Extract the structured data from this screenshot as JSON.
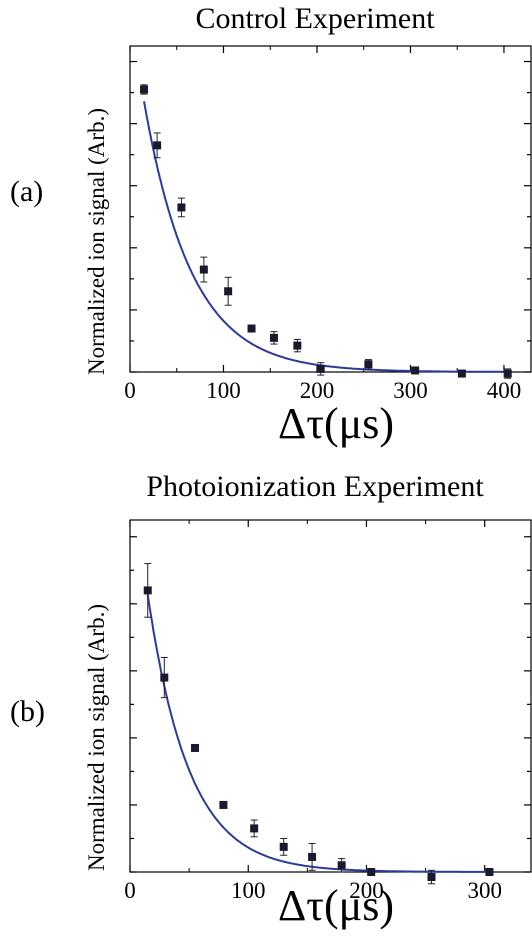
{
  "chart_data": [
    {
      "type": "scatter",
      "panel_label": "(a)",
      "title": "Control Experiment",
      "xlabel": "Δτ(μs)",
      "ylabel": "Normalized ion signal (Arb.)",
      "xlim": [
        0,
        430
      ],
      "ylim": [
        0,
        1.05
      ],
      "xticks": [
        "0",
        "100",
        "200",
        "300",
        "400"
      ],
      "xtick_values": [
        0,
        100,
        200,
        300,
        400
      ],
      "y_tick_labels_shown": false,
      "series": [
        {
          "marker": "square",
          "points": [
            {
              "x": 15,
              "y": 0.91,
              "err": 0.015
            },
            {
              "x": 29,
              "y": 0.73,
              "err": 0.04
            },
            {
              "x": 55,
              "y": 0.53,
              "err": 0.03
            },
            {
              "x": 79,
              "y": 0.33,
              "err": 0.04
            },
            {
              "x": 105,
              "y": 0.26,
              "err": 0.045
            },
            {
              "x": 130,
              "y": 0.14,
              "err": 0.0
            },
            {
              "x": 154,
              "y": 0.11,
              "err": 0.02
            },
            {
              "x": 179,
              "y": 0.085,
              "err": 0.02
            },
            {
              "x": 204,
              "y": 0.01,
              "err": 0.02
            },
            {
              "x": 255,
              "y": 0.025,
              "err": 0.015
            },
            {
              "x": 305,
              "y": 0.005,
              "err": 0.0
            },
            {
              "x": 355,
              "y": -0.005,
              "err": 0.01
            },
            {
              "x": 404,
              "y": -0.005,
              "err": 0.015
            }
          ]
        },
        {
          "type": "line",
          "fit": {
            "amplitude": 1.17,
            "tau": 51,
            "offset": 0
          },
          "color": "#2e3a9a"
        }
      ]
    },
    {
      "type": "scatter",
      "panel_label": "(b)",
      "title": "Photoionization Experiment",
      "xlabel": "Δτ(μs)",
      "ylabel": "Normalized ion signal (Arb.)",
      "xlim": [
        0,
        340
      ],
      "ylim": [
        0,
        1.05
      ],
      "xticks": [
        "0",
        "100",
        "200",
        "300"
      ],
      "xtick_values": [
        0,
        100,
        200,
        300
      ],
      "y_tick_labels_shown": false,
      "series": [
        {
          "marker": "square",
          "points": [
            {
              "x": 15,
              "y": 0.84,
              "err": 0.08
            },
            {
              "x": 29,
              "y": 0.58,
              "err": 0.06
            },
            {
              "x": 55,
              "y": 0.37,
              "err": 0.0
            },
            {
              "x": 79,
              "y": 0.2,
              "err": 0.0
            },
            {
              "x": 105,
              "y": 0.13,
              "err": 0.025
            },
            {
              "x": 130,
              "y": 0.075,
              "err": 0.025
            },
            {
              "x": 154,
              "y": 0.045,
              "err": 0.04
            },
            {
              "x": 179,
              "y": 0.02,
              "err": 0.02
            },
            {
              "x": 204,
              "y": 0.0,
              "err": 0.0
            },
            {
              "x": 255,
              "y": -0.015,
              "err": 0.02
            },
            {
              "x": 304,
              "y": 0.0,
              "err": 0.0
            }
          ]
        },
        {
          "type": "line",
          "fit": {
            "amplitude": 1.27,
            "tau": 35,
            "offset": 0
          },
          "color": "#2e3a9a"
        }
      ]
    }
  ]
}
